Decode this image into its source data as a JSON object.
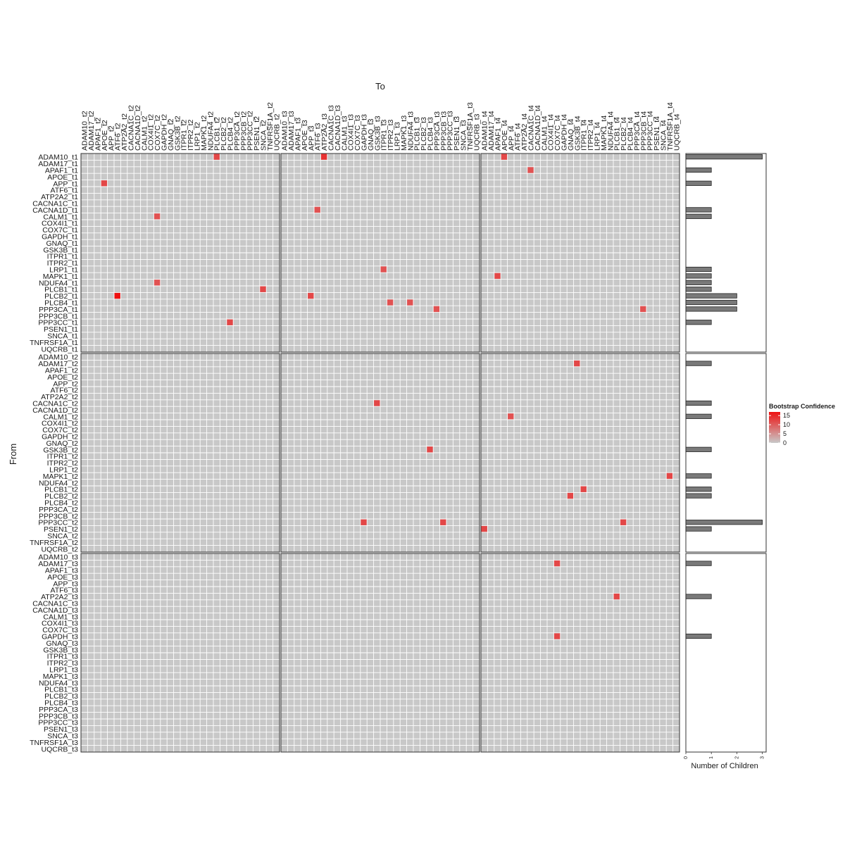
{
  "chart_data": {
    "type": "heatmap",
    "xlabel": "To",
    "ylabel": "From",
    "genes": [
      "ADAM10",
      "ADAM17",
      "APAF1",
      "APOE",
      "APP",
      "ATF6",
      "ATP2A2",
      "CACNA1C",
      "CACNA1D",
      "CALM1",
      "COX4I1",
      "COX7C",
      "GAPDH",
      "GNAQ",
      "GSK3B",
      "ITPR1",
      "ITPR2",
      "LRP1",
      "MAPK1",
      "NDUFA4",
      "PLCB1",
      "PLCB2",
      "PLCB4",
      "PPP3CA",
      "PPP3CB",
      "PPP3CC",
      "PSEN1",
      "SNCA",
      "TNFRSF1A",
      "UQCRB"
    ],
    "row_blocks": [
      "t1",
      "t2",
      "t3"
    ],
    "col_blocks": [
      "t2",
      "t3",
      "t4"
    ],
    "legend": {
      "title": "Bootstrap Confidence",
      "ticks": [
        15,
        10,
        5,
        0
      ],
      "min": 0,
      "max": 17,
      "low_color": "#c8c8c8",
      "high_color": "#ee1111"
    },
    "cells": [
      {
        "from": "ADAM10_t1",
        "to": "PLCB1_t2",
        "value": 12
      },
      {
        "from": "ADAM10_t1",
        "to": "ATP2A2_t3",
        "value": 14
      },
      {
        "from": "ADAM10_t1",
        "to": "APOE_t4",
        "value": 12
      },
      {
        "from": "APAF1_t1",
        "to": "CACNA1C_t4",
        "value": 11
      },
      {
        "from": "APP_t1",
        "to": "APOE_t2",
        "value": 12
      },
      {
        "from": "CACNA1D_t1",
        "to": "ATF6_t3",
        "value": 11
      },
      {
        "from": "CALM1_t1",
        "to": "COX7C_t2",
        "value": 11
      },
      {
        "from": "LRP1_t1",
        "to": "ITPR1_t3",
        "value": 11
      },
      {
        "from": "MAPK1_t1",
        "to": "APAF1_t4",
        "value": 12
      },
      {
        "from": "NDUFA4_t1",
        "to": "COX7C_t2",
        "value": 11
      },
      {
        "from": "PLCB1_t1",
        "to": "SNCA_t2",
        "value": 12
      },
      {
        "from": "PLCB2_t1",
        "to": "ATF6_t2",
        "value": 17
      },
      {
        "from": "PLCB2_t1",
        "to": "APP_t3",
        "value": 12
      },
      {
        "from": "PLCB4_t1",
        "to": "ITPR2_t3",
        "value": 11
      },
      {
        "from": "PLCB4_t1",
        "to": "NDUFA4_t3",
        "value": 11
      },
      {
        "from": "PPP3CA_t1",
        "to": "PPP3CA_t3",
        "value": 11
      },
      {
        "from": "PPP3CA_t1",
        "to": "PPP3CB_t4",
        "value": 11
      },
      {
        "from": "PPP3CC_t1",
        "to": "PLCB4_t2",
        "value": 12
      },
      {
        "from": "ADAM17_t2",
        "to": "GSK3B_t4",
        "value": 12
      },
      {
        "from": "CACNA1C_t2",
        "to": "GSK3B_t3",
        "value": 12
      },
      {
        "from": "CALM1_t2",
        "to": "APP_t4",
        "value": 11
      },
      {
        "from": "GSK3B_t2",
        "to": "PLCB4_t3",
        "value": 12
      },
      {
        "from": "MAPK1_t2",
        "to": "TNFRSF1A_t4",
        "value": 12
      },
      {
        "from": "PLCB1_t2",
        "to": "ITPR1_t4",
        "value": 12
      },
      {
        "from": "PLCB2_t2",
        "to": "GNAQ_t4",
        "value": 12
      },
      {
        "from": "PPP3CC_t2",
        "to": "GAPDH_t3",
        "value": 12
      },
      {
        "from": "PPP3CC_t2",
        "to": "PPP3CB_t3",
        "value": 12
      },
      {
        "from": "PPP3CC_t2",
        "to": "PLCB2_t4",
        "value": 12
      },
      {
        "from": "PSEN1_t2",
        "to": "ADAM10_t4",
        "value": 12
      },
      {
        "from": "ADAM17_t3",
        "to": "COX7C_t4",
        "value": 12
      },
      {
        "from": "ATP2A2_t3",
        "to": "PLCB1_t4",
        "value": 12
      },
      {
        "from": "GAPDH_t3",
        "to": "COX7C_t4",
        "value": 12
      }
    ],
    "bar_panel": {
      "xlabel": "Number of Children",
      "ticks": [
        0,
        1,
        2,
        3
      ],
      "xlim": [
        0,
        3.15
      ],
      "children": [
        [
          3,
          0,
          1,
          0,
          1,
          0,
          0,
          0,
          1,
          1,
          0,
          0,
          0,
          0,
          0,
          0,
          0,
          1,
          1,
          1,
          1,
          2,
          2,
          2,
          0,
          1,
          0,
          0,
          0,
          0
        ],
        [
          0,
          1,
          0,
          0,
          0,
          0,
          0,
          1,
          0,
          1,
          0,
          0,
          0,
          0,
          1,
          0,
          0,
          0,
          1,
          0,
          1,
          1,
          0,
          0,
          0,
          3,
          1,
          0,
          0,
          0
        ],
        [
          0,
          1,
          0,
          0,
          0,
          0,
          1,
          0,
          0,
          0,
          0,
          0,
          1,
          0,
          0,
          0,
          0,
          0,
          0,
          0,
          0,
          0,
          0,
          0,
          0,
          0,
          0,
          0,
          0,
          0
        ]
      ]
    }
  }
}
